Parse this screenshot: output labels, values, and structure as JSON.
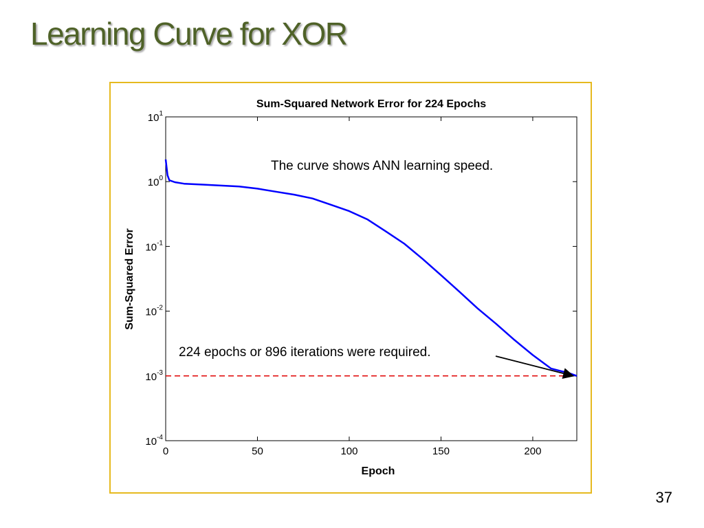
{
  "slide": {
    "title": "Learning Curve for XOR",
    "page_number": "37"
  },
  "colors": {
    "title": "#4f6228",
    "frame_border": "#e6b91e",
    "curve": "#0000ff",
    "threshold_line": "#e00000"
  },
  "chart_data": {
    "type": "line",
    "title": "Sum-Squared Network Error for 224 Epochs",
    "xlabel": "Epoch",
    "ylabel": "Sum-Squared Error",
    "xlim": [
      0,
      224
    ],
    "ylim": [
      0.0001,
      10
    ],
    "yscale": "log",
    "grid": false,
    "x_ticks": [
      0,
      50,
      100,
      150,
      200
    ],
    "x_tick_labels": [
      "0",
      "50",
      "100",
      "150",
      "200"
    ],
    "y_ticks": [
      10,
      1,
      0.1,
      0.01,
      0.001,
      0.0001
    ],
    "y_tick_labels": [
      {
        "base": "10",
        "exp": "1"
      },
      {
        "base": "10",
        "exp": "0"
      },
      {
        "base": "10",
        "exp": "-1"
      },
      {
        "base": "10",
        "exp": "-2"
      },
      {
        "base": "10",
        "exp": "-3"
      },
      {
        "base": "10",
        "exp": "-4"
      }
    ],
    "series": [
      {
        "x": [
          0,
          1,
          2,
          5,
          10,
          20,
          30,
          40,
          50,
          60,
          70,
          80,
          90,
          100,
          110,
          120,
          130,
          140,
          150,
          160,
          170,
          180,
          190,
          200,
          210,
          220,
          224
        ],
        "y": [
          2.2,
          1.25,
          1.05,
          0.98,
          0.93,
          0.9,
          0.87,
          0.84,
          0.78,
          0.7,
          0.63,
          0.55,
          0.44,
          0.35,
          0.26,
          0.17,
          0.11,
          0.064,
          0.036,
          0.02,
          0.011,
          0.0064,
          0.0036,
          0.0021,
          0.0013,
          0.0011,
          0.001
        ]
      }
    ],
    "threshold": {
      "y": 0.001,
      "style": "dashed"
    },
    "annotations": [
      {
        "text": "The curve shows ANN learning speed."
      },
      {
        "text": "224 epochs or 896 iterations were required.",
        "arrow_to": {
          "x": 222,
          "y": 0.001
        }
      }
    ]
  }
}
